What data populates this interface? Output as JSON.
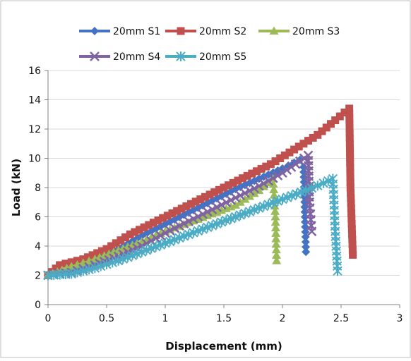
{
  "chart_data": {
    "type": "line",
    "title": "",
    "xlabel": "Displacement (mm)",
    "ylabel": "Load (kN)",
    "xlim": [
      0,
      3
    ],
    "ylim": [
      0,
      16
    ],
    "xticks": [
      "0",
      "0.5",
      "1",
      "1.5",
      "2",
      "2.5",
      "3"
    ],
    "yticks": [
      "0",
      "2",
      "4",
      "6",
      "8",
      "10",
      "12",
      "14",
      "16"
    ],
    "grid": "horizontal",
    "legend_position": "top",
    "series": [
      {
        "name": "20mm S1",
        "color": "#4472C4",
        "marker": "diamond",
        "points": [
          [
            0,
            2.0
          ],
          [
            0.2,
            2.4
          ],
          [
            0.4,
            3.0
          ],
          [
            0.6,
            3.8
          ],
          [
            0.8,
            4.7
          ],
          [
            1.0,
            5.5
          ],
          [
            1.2,
            6.3
          ],
          [
            1.4,
            7.1
          ],
          [
            1.6,
            7.9
          ],
          [
            1.8,
            8.6
          ],
          [
            2.0,
            9.3
          ],
          [
            2.15,
            9.9
          ],
          [
            2.18,
            9.4
          ],
          [
            2.2,
            3.6
          ]
        ]
      },
      {
        "name": "20mm S2",
        "color": "#C0504D",
        "marker": "square",
        "points": [
          [
            0,
            2.0
          ],
          [
            0.1,
            2.7
          ],
          [
            0.3,
            3.1
          ],
          [
            0.5,
            3.8
          ],
          [
            0.7,
            4.8
          ],
          [
            0.9,
            5.6
          ],
          [
            1.1,
            6.4
          ],
          [
            1.3,
            7.2
          ],
          [
            1.5,
            8.0
          ],
          [
            1.7,
            8.8
          ],
          [
            1.9,
            9.6
          ],
          [
            2.1,
            10.6
          ],
          [
            2.3,
            11.6
          ],
          [
            2.45,
            12.6
          ],
          [
            2.57,
            13.4
          ],
          [
            2.58,
            8.0
          ],
          [
            2.6,
            3.4
          ]
        ]
      },
      {
        "name": "20mm S3",
        "color": "#9BBB59",
        "marker": "triangle",
        "points": [
          [
            0,
            2.0
          ],
          [
            0.2,
            2.6
          ],
          [
            0.4,
            3.1
          ],
          [
            0.6,
            3.7
          ],
          [
            0.8,
            4.3
          ],
          [
            1.0,
            5.0
          ],
          [
            1.2,
            5.6
          ],
          [
            1.4,
            6.2
          ],
          [
            1.6,
            6.8
          ],
          [
            1.8,
            7.8
          ],
          [
            1.92,
            8.6
          ],
          [
            1.94,
            6.0
          ],
          [
            1.95,
            3.0
          ]
        ]
      },
      {
        "name": "20mm S4",
        "color": "#8064A2",
        "marker": "x",
        "points": [
          [
            0,
            2.0
          ],
          [
            0.2,
            2.2
          ],
          [
            0.4,
            2.7
          ],
          [
            0.6,
            3.3
          ],
          [
            0.8,
            4.0
          ],
          [
            1.0,
            4.9
          ],
          [
            1.2,
            5.7
          ],
          [
            1.4,
            6.5
          ],
          [
            1.6,
            7.3
          ],
          [
            1.8,
            8.1
          ],
          [
            2.0,
            9.0
          ],
          [
            2.15,
            9.8
          ],
          [
            2.22,
            10.2
          ],
          [
            2.23,
            7.0
          ],
          [
            2.25,
            5.0
          ]
        ]
      },
      {
        "name": "20mm S5",
        "color": "#4BACC6",
        "marker": "star",
        "points": [
          [
            0,
            2.0
          ],
          [
            0.2,
            2.1
          ],
          [
            0.4,
            2.5
          ],
          [
            0.6,
            3.0
          ],
          [
            0.8,
            3.6
          ],
          [
            1.0,
            4.2
          ],
          [
            1.2,
            4.8
          ],
          [
            1.4,
            5.4
          ],
          [
            1.6,
            6.0
          ],
          [
            1.8,
            6.6
          ],
          [
            2.0,
            7.2
          ],
          [
            2.2,
            7.8
          ],
          [
            2.35,
            8.3
          ],
          [
            2.43,
            8.6
          ],
          [
            2.45,
            5.0
          ],
          [
            2.47,
            2.3
          ]
        ]
      }
    ]
  }
}
